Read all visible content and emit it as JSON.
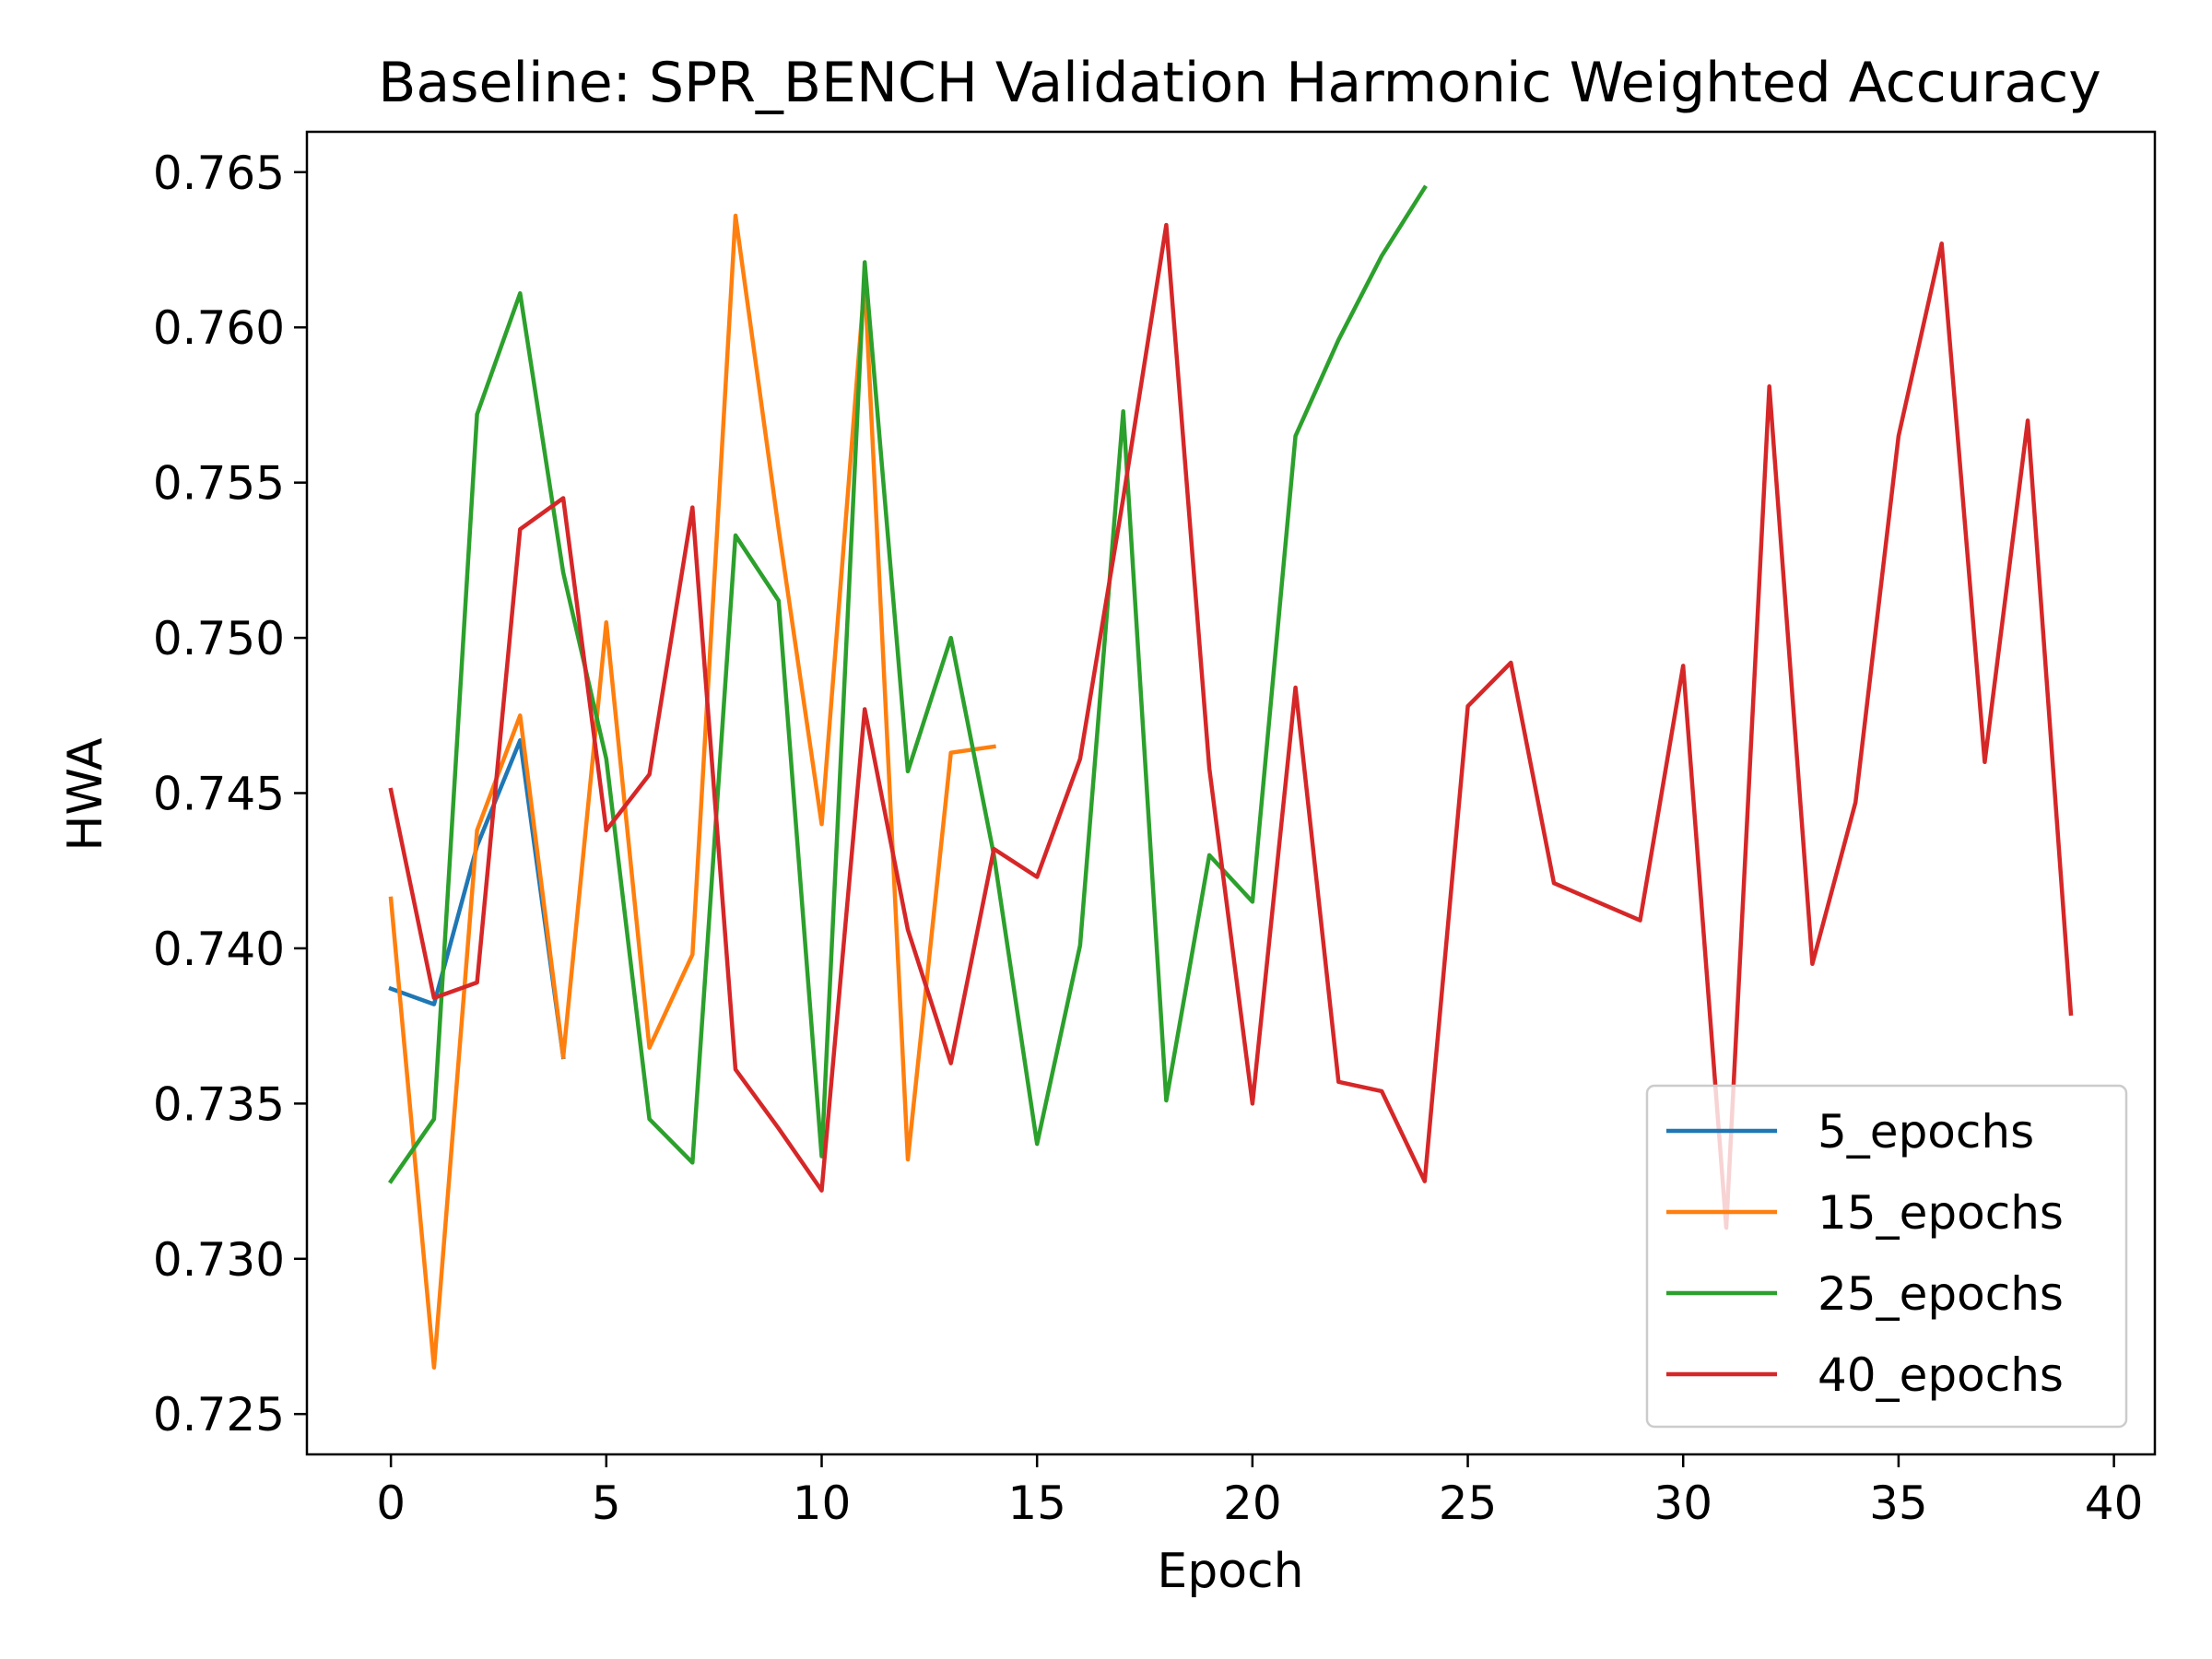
{
  "chart_data": {
    "type": "line",
    "title": "Baseline: SPR_BENCH Validation Harmonic Weighted Accuracy",
    "xlabel": "Epoch",
    "ylabel": "HWA",
    "xlim": [
      -1.95,
      40.95
    ],
    "ylim": [
      0.7237,
      0.7663
    ],
    "xticks": [
      0,
      5,
      10,
      15,
      20,
      25,
      30,
      35,
      40
    ],
    "xtick_labels": [
      "0",
      "5",
      "10",
      "15",
      "20",
      "25",
      "30",
      "35",
      "40"
    ],
    "yticks": [
      0.725,
      0.73,
      0.735,
      0.74,
      0.745,
      0.75,
      0.755,
      0.76,
      0.765
    ],
    "ytick_labels": [
      "0.725",
      "0.730",
      "0.735",
      "0.740",
      "0.745",
      "0.750",
      "0.755",
      "0.760",
      "0.765"
    ],
    "grid": false,
    "legend_position": "lower-right",
    "series": [
      {
        "name": "5_epochs",
        "color": "#1f77b4",
        "x": [
          0,
          1,
          2,
          3,
          4
        ],
        "y": [
          0.7387,
          0.7382,
          0.7433,
          0.7467,
          0.7365
        ]
      },
      {
        "name": "15_epochs",
        "color": "#ff7f0e",
        "x": [
          0,
          1,
          2,
          3,
          4,
          5,
          6,
          7,
          8,
          9,
          10,
          11,
          12,
          13,
          14
        ],
        "y": [
          0.7416,
          0.7265,
          0.7438,
          0.7475,
          0.7365,
          0.7505,
          0.7368,
          0.7398,
          0.7636,
          0.7535,
          0.744,
          0.7615,
          0.7332,
          0.7463,
          0.7465
        ]
      },
      {
        "name": "25_epochs",
        "color": "#2ca02c",
        "x": [
          0,
          1,
          2,
          3,
          4,
          5,
          6,
          7,
          8,
          9,
          10,
          11,
          12,
          13,
          14,
          15,
          16,
          17,
          18,
          19,
          20,
          21,
          22,
          23,
          24
        ],
        "y": [
          0.7325,
          0.7345,
          0.7572,
          0.7611,
          0.7521,
          0.7461,
          0.7345,
          0.7331,
          0.7533,
          0.7512,
          0.7333,
          0.7621,
          0.7457,
          0.75,
          0.743,
          0.7337,
          0.7401,
          0.7573,
          0.7351,
          0.743,
          0.7415,
          0.7565,
          0.7596,
          0.7623,
          0.7645
        ]
      },
      {
        "name": "40_epochs",
        "color": "#d62728",
        "x": [
          0,
          1,
          2,
          3,
          4,
          5,
          6,
          7,
          8,
          9,
          10,
          11,
          12,
          13,
          14,
          15,
          16,
          17,
          18,
          19,
          20,
          21,
          22,
          23,
          24,
          25,
          26,
          27,
          28,
          29,
          30,
          31,
          32,
          33,
          34,
          35,
          36,
          37,
          38,
          39
        ],
        "y": [
          0.7451,
          0.7384,
          0.7389,
          0.7535,
          0.7545,
          0.7438,
          0.7456,
          0.7542,
          0.7361,
          0.7342,
          0.7322,
          0.7477,
          0.7406,
          0.7363,
          0.7432,
          0.7423,
          0.7461,
          0.7545,
          0.7633,
          0.7458,
          0.735,
          0.7484,
          0.7357,
          0.7354,
          0.7325,
          0.7478,
          0.7492,
          0.7421,
          0.7415,
          0.7409,
          0.7491,
          0.731,
          0.7581,
          0.7395,
          0.7447,
          0.7565,
          0.7627,
          0.746,
          0.757,
          0.7379
        ]
      }
    ]
  }
}
